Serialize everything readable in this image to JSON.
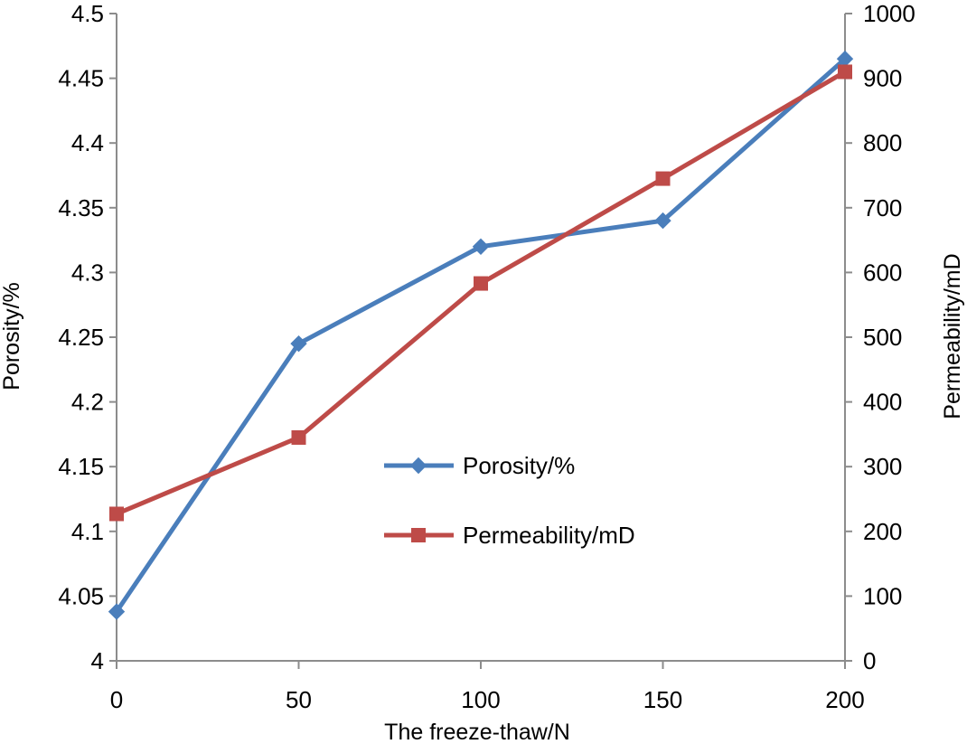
{
  "chart_data": {
    "type": "line",
    "xlabel": "The freeze-thaw/N",
    "ylabel": "Porosity/%",
    "y2label": "Permeability/mD",
    "xlim": [
      0,
      200
    ],
    "ylim": [
      4,
      4.5
    ],
    "y2lim": [
      0,
      1000
    ],
    "x_ticks": [
      "0",
      "50",
      "100",
      "150",
      "200"
    ],
    "y_ticks": [
      "4",
      "4.05",
      "4.1",
      "4.15",
      "4.2",
      "4.25",
      "4.3",
      "4.35",
      "4.4",
      "4.45",
      "4.5"
    ],
    "y2_ticks": [
      "0",
      "100",
      "200",
      "300",
      "400",
      "500",
      "600",
      "700",
      "800",
      "900",
      "1000"
    ],
    "grid": false,
    "legend_position": "center",
    "series": [
      {
        "name": "Porosity/%",
        "axis": "left",
        "marker": "diamond",
        "color": "#4a7ebb",
        "x": [
          0,
          50,
          100,
          150,
          200
        ],
        "values": [
          4.038,
          4.245,
          4.32,
          4.34,
          4.465
        ]
      },
      {
        "name": "Permeability/mD",
        "axis": "right",
        "marker": "square",
        "color": "#be4b48",
        "x": [
          0,
          50,
          100,
          150,
          200
        ],
        "values": [
          227,
          345,
          583,
          745,
          910
        ]
      }
    ]
  }
}
